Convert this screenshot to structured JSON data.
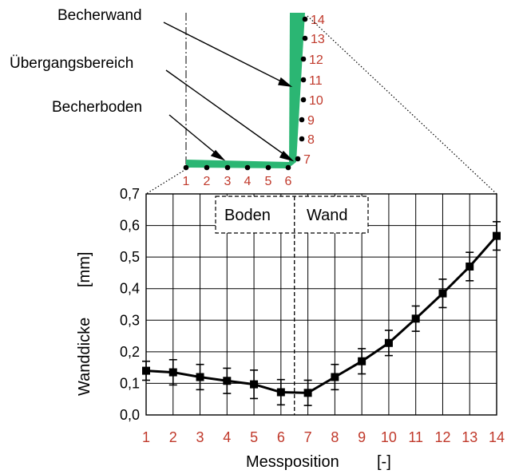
{
  "diagram": {
    "labels": {
      "wall": "Becherwand",
      "transition": "Übergangsbereich",
      "bottom": "Becherboden"
    },
    "color": "#2bb673",
    "label_color": "#c0392b"
  },
  "chart_data": {
    "type": "line",
    "xlabel": "Messposition",
    "xunit": "[-]",
    "ylabel": "Wanddicke",
    "yunit": "[mm]",
    "x": [
      1,
      2,
      3,
      4,
      5,
      6,
      7,
      8,
      9,
      10,
      11,
      12,
      13,
      14
    ],
    "y_tick_labels": [
      "0,0",
      "0,1",
      "0,2",
      "0,3",
      "0,4",
      "0,5",
      "0,6",
      "0,7"
    ],
    "ylim": [
      0,
      0.7
    ],
    "xlim": [
      1,
      14
    ],
    "grid": true,
    "series": [
      {
        "values": [
          0.14,
          0.135,
          0.12,
          0.108,
          0.097,
          0.072,
          0.07,
          0.12,
          0.17,
          0.228,
          0.305,
          0.385,
          0.47,
          0.567
        ],
        "errors": [
          0.03,
          0.04,
          0.04,
          0.04,
          0.045,
          0.04,
          0.04,
          0.04,
          0.04,
          0.04,
          0.04,
          0.045,
          0.045,
          0.045
        ]
      }
    ],
    "regions": {
      "left": "Boden",
      "right": "Wand",
      "divider_x": 6.5
    }
  }
}
